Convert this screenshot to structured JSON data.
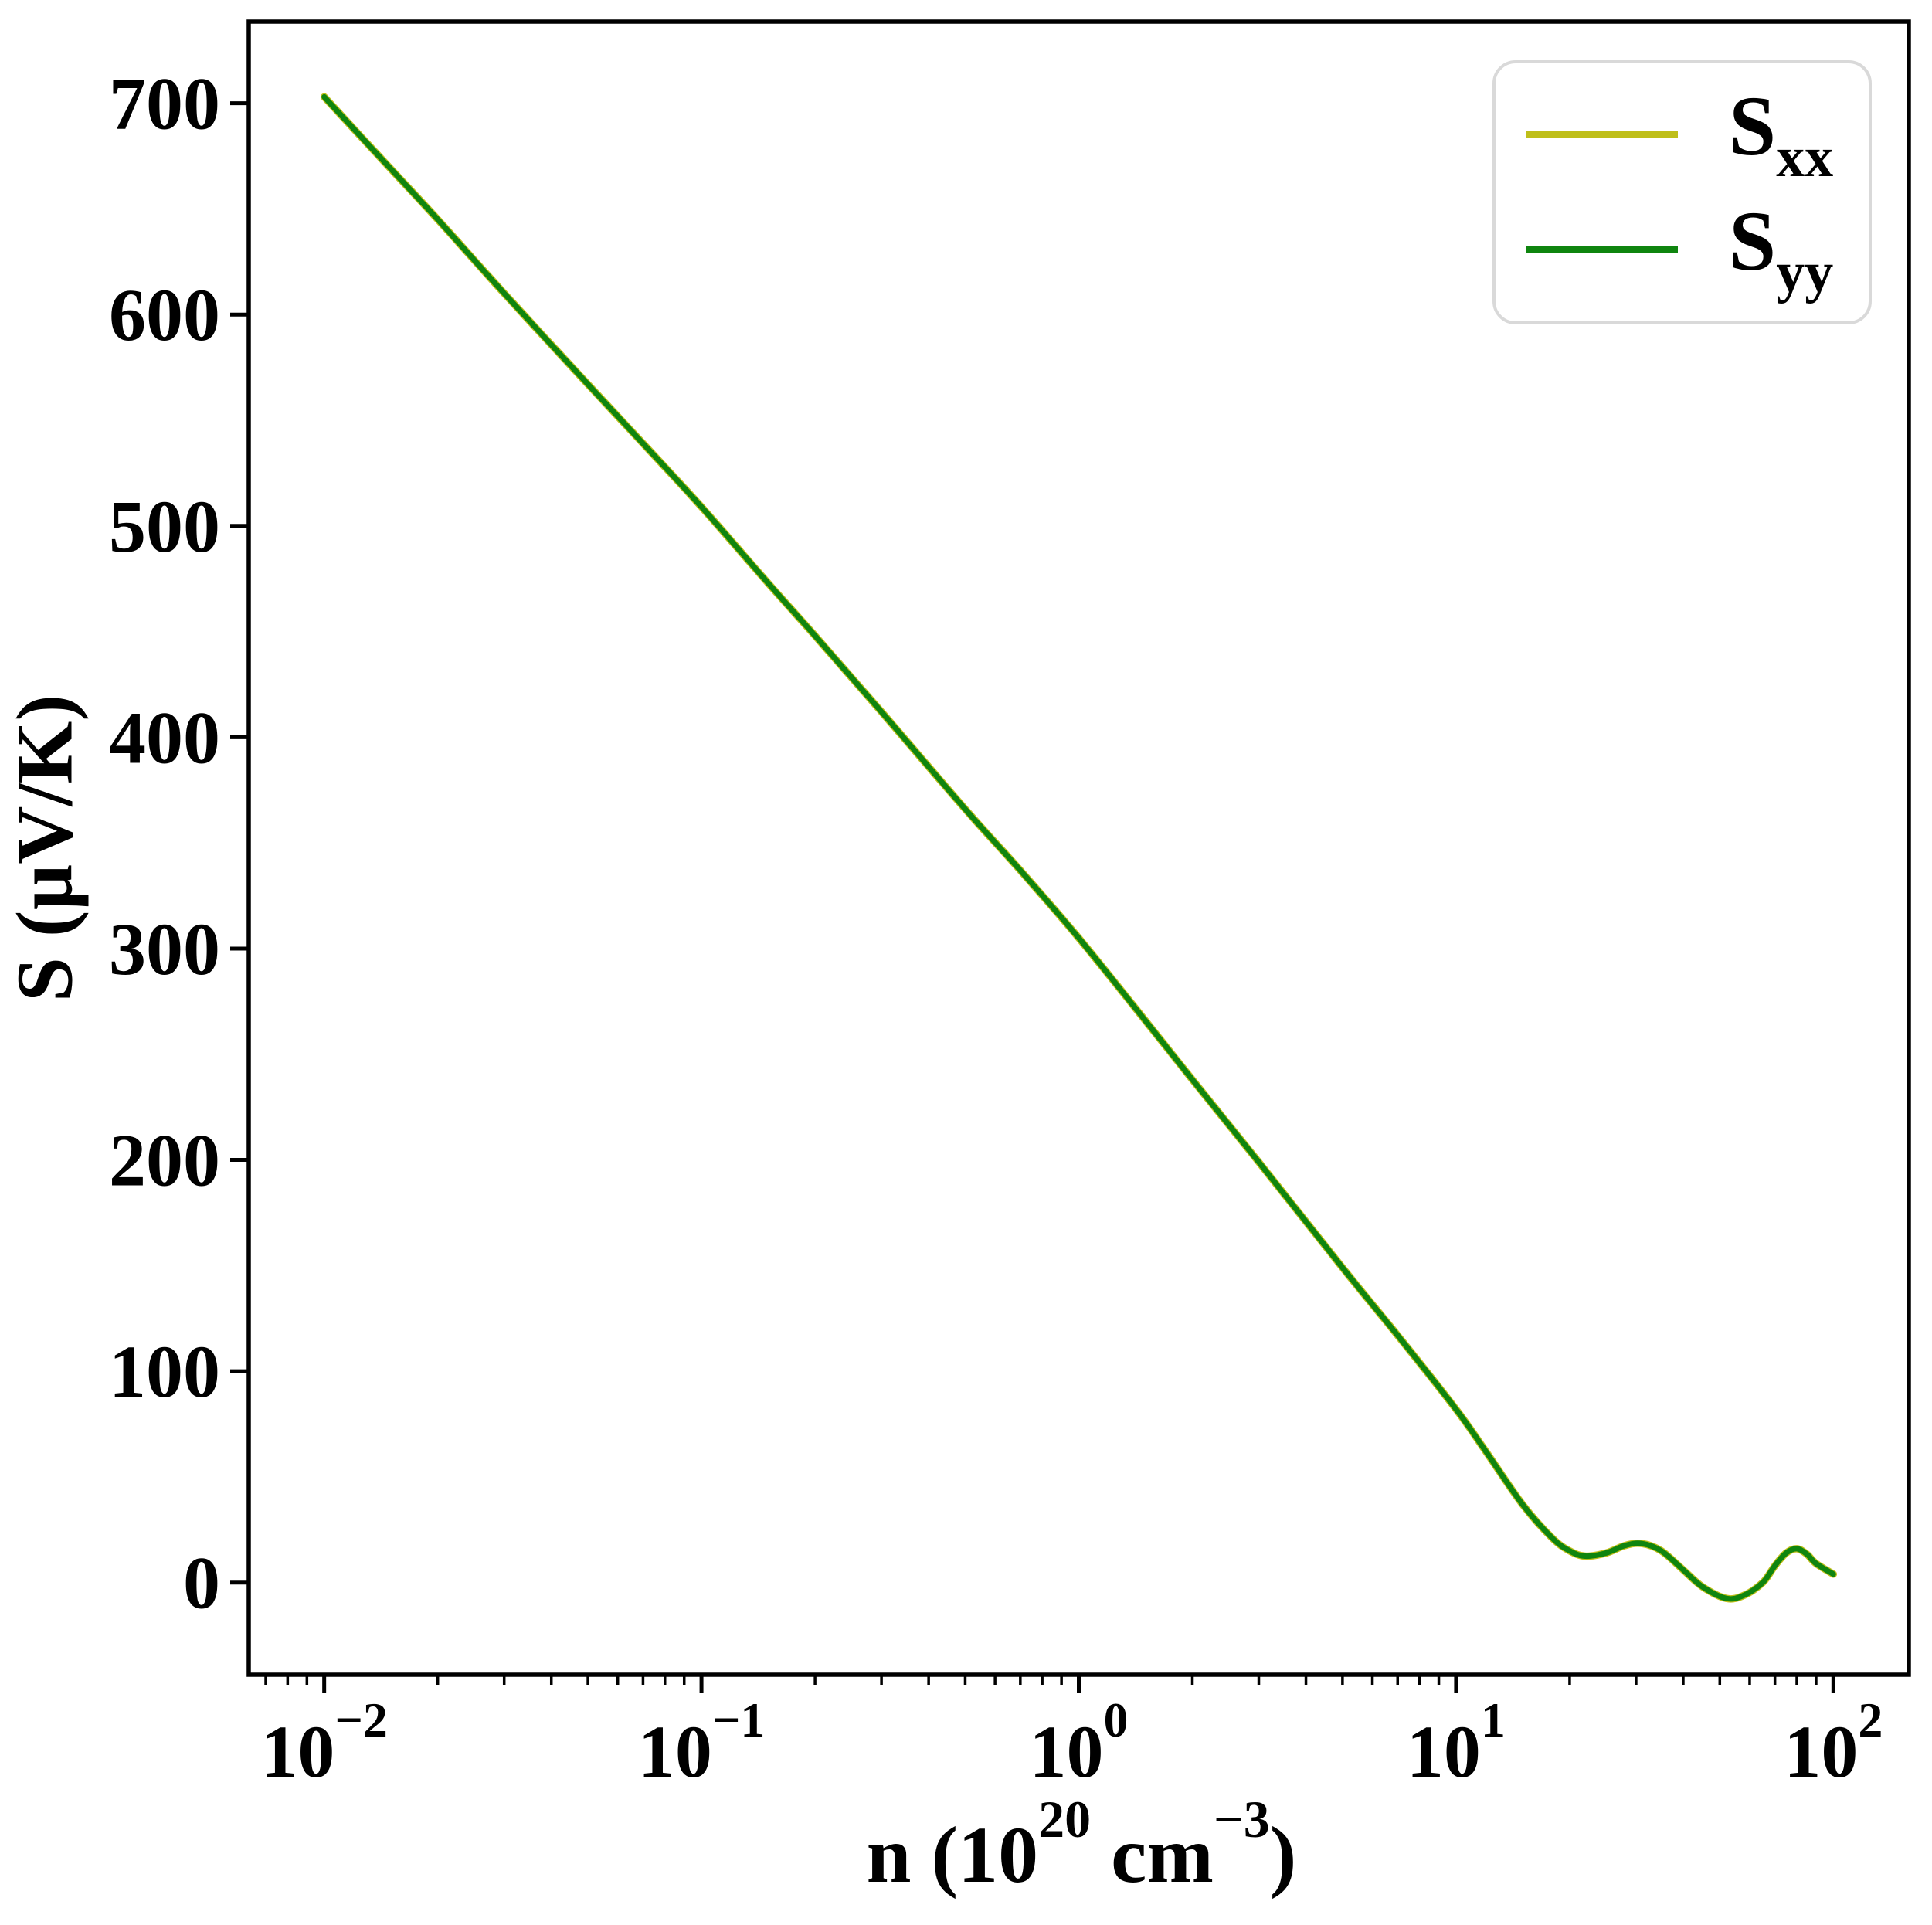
{
  "labels": {
    "y": "S (µV/K)",
    "x_parts": {
      "p1": "n (10",
      "sup1": "20",
      "p2": " cm",
      "sup2": "−3",
      "p3": ")"
    }
  },
  "legend": {
    "entries": [
      {
        "base": "S",
        "sub": "xx",
        "color": "#bfbf1a"
      },
      {
        "base": "S",
        "sub": "yy",
        "color": "#0f850f"
      }
    ]
  },
  "chart_data": {
    "type": "line",
    "title": "",
    "xlabel": "n (10^20 cm^-3)",
    "ylabel": "S (uV/K)",
    "x_scale": "log",
    "grid": false,
    "legend_position": "upper right",
    "xlim": [
      0.00631,
      158.49
    ],
    "ylim": [
      -43.6,
      738.6
    ],
    "x_ticks": [
      0.01,
      0.1,
      1,
      10,
      100
    ],
    "x_tick_labels": [
      {
        "base": "10",
        "sup": "−2"
      },
      {
        "base": "10",
        "sup": "−1"
      },
      {
        "base": "10",
        "sup": "0"
      },
      {
        "base": "10",
        "sup": "1"
      },
      {
        "base": "10",
        "sup": "2"
      }
    ],
    "y_ticks": [
      0,
      100,
      200,
      300,
      400,
      500,
      600,
      700
    ],
    "x": [
      0.01,
      0.015,
      0.02,
      0.03,
      0.05,
      0.07,
      0.1,
      0.15,
      0.2,
      0.3,
      0.5,
      0.7,
      1,
      1.5,
      2,
      3,
      5,
      7,
      10,
      12,
      15,
      18,
      20,
      22,
      25,
      28,
      31,
      35,
      40,
      45,
      52,
      58,
      65,
      70,
      75,
      80,
      85,
      90,
      100
    ],
    "series": [
      {
        "name": "Sxx",
        "color": "#bfbf1a",
        "values": [
          703,
          669,
          645,
          610,
          567,
          539,
          509,
          473,
          448,
          412,
          366,
          337,
          305,
          266,
          238,
          199,
          149,
          117,
          82,
          62,
          37,
          21,
          15,
          12.5,
          14,
          17.5,
          18.5,
          15,
          6,
          -2,
          -7.5,
          -6,
          0,
          8,
          14,
          16,
          13.5,
          9,
          4
        ]
      },
      {
        "name": "Syy",
        "color": "#0f850f",
        "values": [
          703,
          669,
          645,
          610,
          567,
          539,
          509,
          473,
          448,
          412,
          366,
          337,
          305,
          266,
          238,
          199,
          149,
          117,
          82,
          62,
          37,
          21,
          15,
          12.5,
          14,
          17.5,
          18.5,
          15,
          6,
          -2,
          -7.5,
          -6,
          0,
          8,
          14,
          16,
          13.5,
          9,
          4
        ]
      }
    ]
  }
}
